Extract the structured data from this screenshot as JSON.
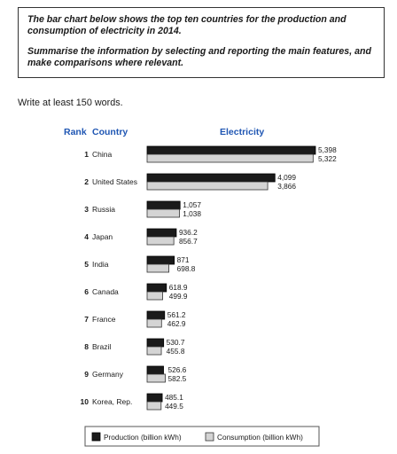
{
  "task": {
    "paragraph1": "The bar chart below shows the top ten countries for the production and consumption of electricity in 2014.",
    "paragraph2": "Summarise the information by selecting and reporting the main features, and make comparisons where relevant."
  },
  "instruction": "Write at least 150 words.",
  "chart_data": {
    "type": "bar",
    "orientation": "horizontal",
    "columns": {
      "rank": "Rank",
      "country": "Country",
      "electricity": "Electricity"
    },
    "ranks": [
      "1",
      "2",
      "3",
      "4",
      "5",
      "6",
      "7",
      "8",
      "9",
      "10"
    ],
    "categories": [
      "China",
      "United States",
      "Russia",
      "Japan",
      "India",
      "Canada",
      "France",
      "Brazil",
      "Germany",
      "Korea, Rep."
    ],
    "series": [
      {
        "name": "Production (billion kWh)",
        "color": "#1a1a1a",
        "values": [
          5398,
          4099,
          1057,
          936.2,
          871,
          618.9,
          561.2,
          530.7,
          526.6,
          485.1
        ],
        "labels": [
          "5,398",
          "4,099",
          "1,057",
          "936.2",
          "871",
          "618.9",
          "561.2",
          "530.7",
          "526.6",
          "485.1"
        ]
      },
      {
        "name": "Consumption (billion kWh)",
        "color": "#d4d4d4",
        "values": [
          5322,
          3866,
          1038,
          856.7,
          698.8,
          499.9,
          462.9,
          455.8,
          582.5,
          449.5
        ],
        "labels": [
          "5,322",
          "3,866",
          "1,038",
          "856.7",
          "698.8",
          "499.9",
          "462.9",
          "455.8",
          "582.5",
          "449.5"
        ]
      }
    ],
    "xlim": [
      0,
      5398
    ],
    "grid": false,
    "legend": "bottom"
  }
}
